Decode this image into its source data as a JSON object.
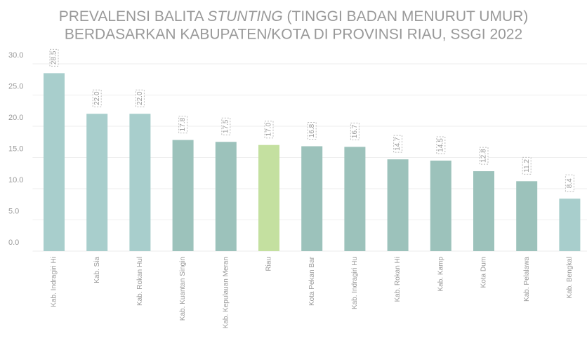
{
  "chart_data": {
    "type": "bar",
    "title": {
      "line1": [
        "PREVALENSI BALITA",
        "STUNTING",
        "(TINGGI BADAN MENURUT UMUR)"
      ],
      "line2": "BERDASARKAN KABUPATEN/KOTA DI PROVINSI RIAU, SSGI 2022"
    },
    "categories": [
      "Kab. Indragiri Hi",
      "Kab. Sia",
      "Kab. Rokan Hul",
      "Kab. Kuantan Singin",
      "Kab. Kepulauan Meran",
      "Riau",
      "Kota Pekan Bar",
      "Kab. Indragiri Hu",
      "Kab. Rokan Hi",
      "Kab. Kamp",
      "Kota Dum",
      "Kab. Pelalawa",
      "Kab. Bengkal"
    ],
    "values": [
      28.5,
      22.0,
      22.0,
      17.8,
      17.5,
      17.0,
      16.8,
      16.7,
      14.7,
      14.5,
      12.8,
      11.2,
      8.4
    ],
    "value_labels": [
      "28.5",
      "22.0",
      "22.0",
      "17.8",
      "17.5",
      "17.0",
      "16.8",
      "16.7",
      "14.7",
      "14.5",
      "12.8",
      "11.2",
      "8.4"
    ],
    "colors": [
      "#a8cecc",
      "#a8cecc",
      "#a8cecc",
      "#9cc2bb",
      "#9cc2bb",
      "#c4e0a0",
      "#9cc2bb",
      "#9cc2bb",
      "#9cc2bb",
      "#9cc2bb",
      "#9cc2bb",
      "#9cc2bb",
      "#a8cecc"
    ],
    "ylim": [
      0,
      30
    ],
    "yticks": [
      {
        "value": 0,
        "label": "0.0"
      },
      {
        "value": 5,
        "label": "5.0"
      },
      {
        "value": 10,
        "label": "10.0"
      },
      {
        "value": 15,
        "label": "15.0"
      },
      {
        "value": 20,
        "label": "20.0"
      },
      {
        "value": 25,
        "label": "25.0"
      },
      {
        "value": 30,
        "label": "30.0"
      }
    ],
    "grid": true
  }
}
